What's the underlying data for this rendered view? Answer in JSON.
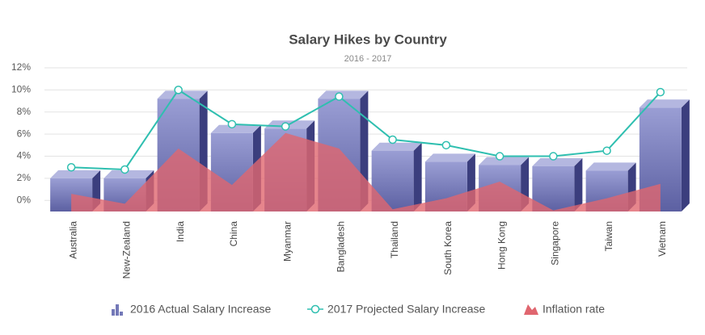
{
  "chart_data": {
    "type": "combo",
    "title": "Salary Hikes by Country",
    "subtitle": "2016 - 2017",
    "categories": [
      "Australia",
      "New-Zealand",
      "India",
      "China",
      "Myanmar",
      "Bangladesh",
      "Thailand",
      "South Korea",
      "Hong Kong",
      "Singapore",
      "Taiwan",
      "Vietnam"
    ],
    "ylim": [
      -1,
      12
    ],
    "yticks": [
      {
        "value": 0,
        "label": "0%"
      },
      {
        "value": 2,
        "label": "2%"
      },
      {
        "value": 4,
        "label": "4%"
      },
      {
        "value": 6,
        "label": "6%"
      },
      {
        "value": 8,
        "label": "8%"
      },
      {
        "value": 10,
        "label": "10%"
      },
      {
        "value": 12,
        "label": "12%"
      }
    ],
    "grid": true,
    "legend": "bottom",
    "series": [
      {
        "name": "2016 Actual Salary Increase",
        "type": "column3d",
        "color": "#7479b8",
        "values": [
          2.0,
          2.0,
          9.2,
          6.1,
          6.5,
          9.2,
          4.5,
          3.5,
          3.2,
          3.1,
          2.7,
          8.4
        ]
      },
      {
        "name": "2017 Projected Salary Increase",
        "type": "line",
        "color": "#2fbfb0",
        "values": [
          3.0,
          2.8,
          10.0,
          6.9,
          6.7,
          9.4,
          5.5,
          5.0,
          4.0,
          4.0,
          4.5,
          9.8
        ]
      },
      {
        "name": "Inflation rate",
        "type": "area",
        "color": "#e0666f",
        "values": [
          0.6,
          -0.3,
          4.7,
          1.4,
          6.1,
          4.7,
          -0.8,
          0.2,
          1.7,
          -0.9,
          0.2,
          1.5
        ]
      }
    ]
  }
}
